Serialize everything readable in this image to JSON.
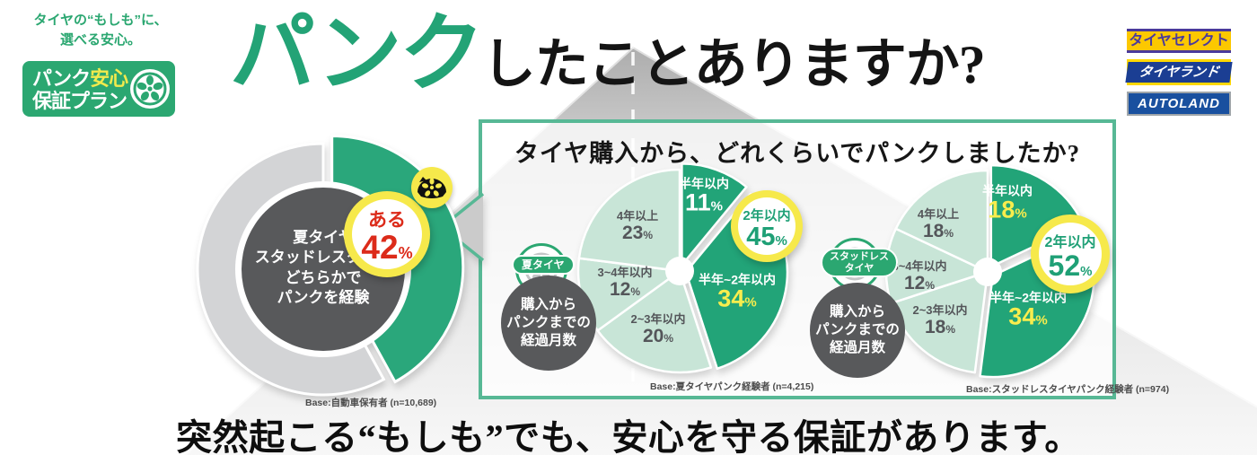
{
  "header": {
    "tagline_line1": "タイヤの“もしも”に、",
    "tagline_line2": "選べる安心。",
    "plan_logo": {
      "t1a": "パンク",
      "t1b": "安心",
      "t2": "保証プラン",
      "icon": "wheel-icon"
    },
    "title_accent": "パンク",
    "title_rest": "したことありますか?",
    "retailers": [
      {
        "name": "タイヤセレクト",
        "bg": "#fcc800",
        "fg": "#4a3a9c"
      },
      {
        "name": "タイヤランド",
        "bg": "#1b3e93",
        "fg": "#ffffff"
      },
      {
        "name": "AUTOLAND",
        "bg": "#19509f",
        "fg": "#ffffff"
      }
    ]
  },
  "question_box": {
    "title": "タイヤ購入から、どれくらいでパンクしましたか?"
  },
  "footer": {
    "text": "突然起こる“もしも”でも、安心を守る保証があります。"
  },
  "colors": {
    "green": "#23a376",
    "dark_slice": "#22a478",
    "light_slice": "#c8e5d7",
    "donut_gray": "#d3d4d6",
    "circle_gray": "#58595b",
    "yellow": "#f6e94b",
    "red": "#dc2b1a",
    "box_border": "#57b895"
  },
  "icons": {
    "plan_logo": "wheel-icon",
    "answer_badge": "flat-tire-icon",
    "summer_chip": "wheel-icon",
    "studless_chip": "wheel-icon"
  },
  "chart_data": [
    {
      "type": "pie",
      "name": "puncture-experience-donut",
      "center_label": [
        "夏タイヤ",
        "スタッドレスタイヤ",
        "どちらかで",
        "パンクを経験"
      ],
      "callout": {
        "label": "ある",
        "value": 42,
        "unit": "%"
      },
      "slices": [
        {
          "label": "ある",
          "value": 42,
          "fill": "#2aa77b"
        },
        {
          "label": "",
          "value": 58,
          "fill": "#d3d4d6"
        }
      ],
      "base": "Base:自動車保有者 (n=10,689)"
    },
    {
      "type": "pie",
      "name": "summer-tire-months-to-puncture",
      "group_label": [
        "夏タイヤ"
      ],
      "center_caption": [
        "購入から",
        "パンクまでの",
        "経過月数"
      ],
      "callout": {
        "label": "2年以内",
        "value": 45,
        "unit": "%"
      },
      "slices": [
        {
          "label": "半年以内",
          "value": 11,
          "fill": "#22a478",
          "emph": true,
          "label_color": "#ffffff",
          "pct_color": "#ffffff"
        },
        {
          "label": "半年~2年以内",
          "value": 34,
          "fill": "#22a478",
          "emph": true,
          "label_color": "#ffffff",
          "pct_color": "#f8ed4d"
        },
        {
          "label": "2~3年以内",
          "value": 20,
          "fill": "#c8e5d7",
          "emph": false,
          "label_color": "#54565a",
          "pct_color": "#54565a"
        },
        {
          "label": "3~4年以内",
          "value": 12,
          "fill": "#c8e5d7",
          "emph": false,
          "label_color": "#54565a",
          "pct_color": "#54565a"
        },
        {
          "label": "4年以上",
          "value": 23,
          "fill": "#c8e5d7",
          "emph": false,
          "label_color": "#54565a",
          "pct_color": "#54565a"
        }
      ],
      "base": "Base:夏タイヤパンク経験者 (n=4,215)"
    },
    {
      "type": "pie",
      "name": "studless-tire-months-to-puncture",
      "group_label": [
        "スタッドレス",
        "タイヤ"
      ],
      "center_caption": [
        "購入から",
        "パンクまでの",
        "経過月数"
      ],
      "callout": {
        "label": "2年以内",
        "value": 52,
        "unit": "%"
      },
      "slices": [
        {
          "label": "半年以内",
          "value": 18,
          "fill": "#22a478",
          "emph": true,
          "label_color": "#ffffff",
          "pct_color": "#f8ed4d"
        },
        {
          "label": "半年~2年以内",
          "value": 34,
          "fill": "#22a478",
          "emph": true,
          "label_color": "#ffffff",
          "pct_color": "#f8ed4d"
        },
        {
          "label": "2~3年以内",
          "value": 18,
          "fill": "#c8e5d7",
          "emph": false,
          "label_color": "#54565a",
          "pct_color": "#54565a"
        },
        {
          "label": "3~4年以内",
          "value": 12,
          "fill": "#c8e5d7",
          "emph": false,
          "label_color": "#54565a",
          "pct_color": "#54565a"
        },
        {
          "label": "4年以上",
          "value": 18,
          "fill": "#c8e5d7",
          "emph": false,
          "label_color": "#54565a",
          "pct_color": "#54565a"
        }
      ],
      "base": "Base:スタッドレスタイヤパンク経験者 (n=974)"
    }
  ]
}
